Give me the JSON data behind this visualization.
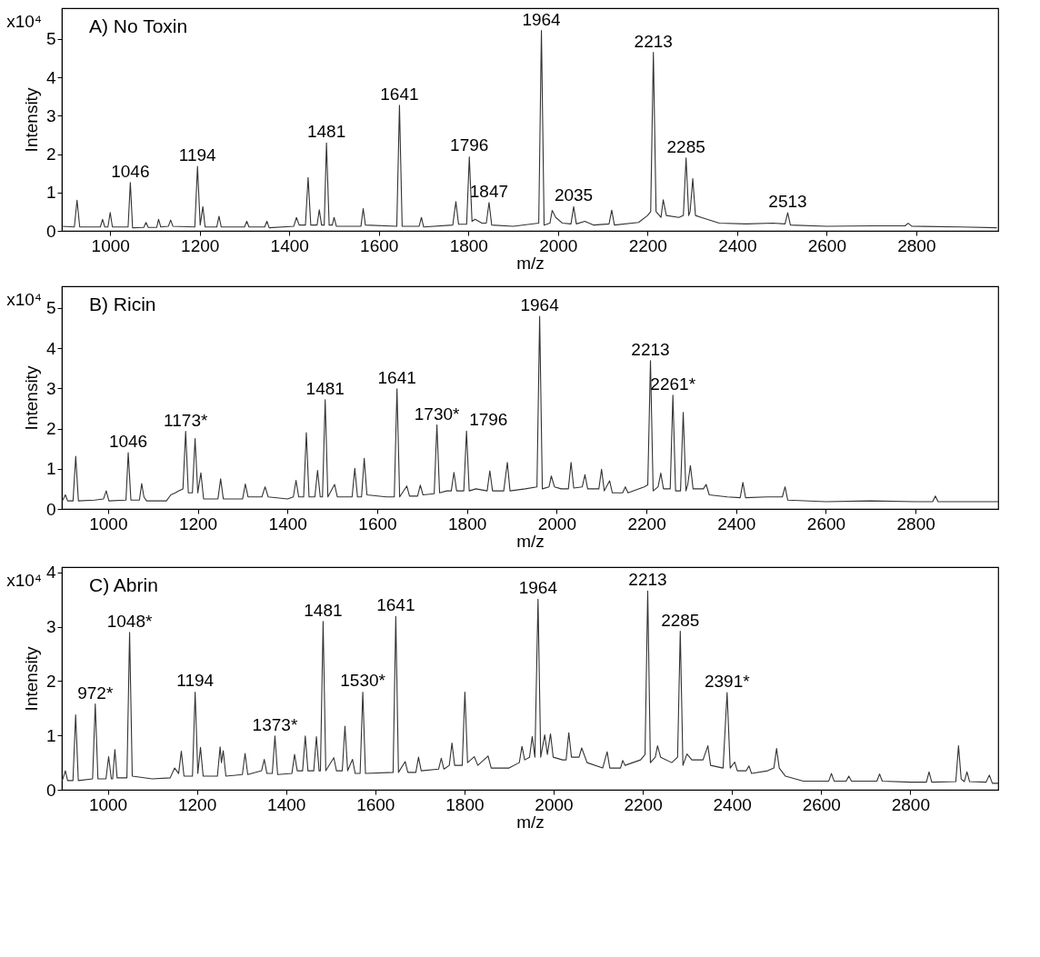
{
  "chart_data": [
    {
      "type": "line",
      "title": "A) No Toxin",
      "xlabel": "m/z",
      "ylabel": "Intensity",
      "xlim": [
        892,
        2983
      ],
      "ylim": [
        0,
        5.8
      ],
      "xticks": [
        1000,
        1200,
        1400,
        1600,
        1800,
        2000,
        2200,
        2400,
        2600,
        2800
      ],
      "yticks": [
        0,
        1,
        2,
        3,
        4,
        5
      ],
      "grid": false,
      "series": [
        {
          "color": "#333333",
          "x": [
            893,
            920,
            926,
            932,
            978,
            983,
            988,
            995,
            1000,
            1005,
            1040,
            1045,
            1050,
            1075,
            1080,
            1085,
            1104,
            1108,
            1113,
            1130,
            1135,
            1140,
            1189,
            1195,
            1201,
            1207,
            1212,
            1238,
            1243,
            1248,
            1300,
            1305,
            1310,
            1345,
            1350,
            1355,
            1410,
            1416,
            1422,
            1436,
            1442,
            1448,
            1462,
            1467,
            1472,
            1478,
            1483,
            1489,
            1496,
            1500,
            1505,
            1560,
            1565,
            1570,
            1640,
            1646,
            1652,
            1690,
            1695,
            1700,
            1765,
            1772,
            1778,
            1796,
            1802,
            1808,
            1815,
            1830,
            1840,
            1846,
            1852,
            1900,
            1957,
            1963,
            1969,
            1982,
            1987,
            1995,
            2010,
            2029,
            2035,
            2041,
            2060,
            2080,
            2114,
            2120,
            2126,
            2180,
            2200,
            2207,
            2213,
            2219,
            2230,
            2235,
            2242,
            2270,
            2280,
            2286,
            2292,
            2295,
            2301,
            2307,
            2320,
            2360,
            2420,
            2480,
            2507,
            2513,
            2519,
            2600,
            2700,
            2775,
            2782,
            2790,
            2900,
            2980
          ],
          "values": [
            0.12,
            0.1,
            0.8,
            0.1,
            0.1,
            0.3,
            0.1,
            0.1,
            0.48,
            0.1,
            0.1,
            1.26,
            0.08,
            0.09,
            0.22,
            0.09,
            0.09,
            0.3,
            0.1,
            0.12,
            0.28,
            0.12,
            0.1,
            1.68,
            0.15,
            0.63,
            0.1,
            0.1,
            0.38,
            0.1,
            0.1,
            0.25,
            0.1,
            0.1,
            0.25,
            0.08,
            0.12,
            0.35,
            0.15,
            0.15,
            1.39,
            0.15,
            0.15,
            0.55,
            0.15,
            0.15,
            2.29,
            0.15,
            0.15,
            0.35,
            0.12,
            0.12,
            0.58,
            0.15,
            0.12,
            3.27,
            0.12,
            0.12,
            0.35,
            0.1,
            0.15,
            0.76,
            0.17,
            0.17,
            1.93,
            0.25,
            0.3,
            0.2,
            0.2,
            0.74,
            0.15,
            0.12,
            0.2,
            5.22,
            0.15,
            0.2,
            0.53,
            0.35,
            0.2,
            0.18,
            0.63,
            0.18,
            0.25,
            0.15,
            0.18,
            0.54,
            0.15,
            0.22,
            0.4,
            0.5,
            4.65,
            0.5,
            0.35,
            0.81,
            0.4,
            0.35,
            0.4,
            1.9,
            0.4,
            0.5,
            1.36,
            0.4,
            0.35,
            0.2,
            0.18,
            0.2,
            0.18,
            0.47,
            0.15,
            0.12,
            0.13,
            0.13,
            0.2,
            0.12,
            0.1,
            0.08
          ]
        }
      ],
      "annotations": [
        "x10⁴",
        {
          "text": "1046",
          "x": 1045,
          "y": 1.26
        },
        {
          "text": "1194",
          "x": 1195,
          "y": 1.68
        },
        {
          "text": "1481",
          "x": 1483,
          "y": 2.29
        },
        {
          "text": "1641",
          "x": 1646,
          "y": 3.27
        },
        {
          "text": "1796",
          "x": 1802,
          "y": 1.93
        },
        {
          "text": "1847",
          "x": 1846,
          "y": 0.74
        },
        {
          "text": "1964",
          "x": 1963,
          "y": 5.22
        },
        {
          "text": "2035",
          "x": 2035,
          "y": 0.63
        },
        {
          "text": "2213",
          "x": 2213,
          "y": 4.65
        },
        {
          "text": "2285",
          "x": 2286,
          "y": 1.9
        },
        {
          "text": "2513",
          "x": 2513,
          "y": 0.47
        }
      ]
    },
    {
      "type": "line",
      "title": "B) Ricin",
      "xlabel": "m/z",
      "ylabel": "Intensity",
      "xlim": [
        897,
        2984
      ],
      "ylim": [
        0,
        5.54
      ],
      "xticks": [
        1000,
        1200,
        1400,
        1600,
        1800,
        2000,
        2200,
        2400,
        2600,
        2800
      ],
      "yticks": [
        0,
        1,
        2,
        3,
        4,
        5
      ],
      "grid": false,
      "series": [
        {
          "color": "#333333",
          "x": [
            898,
            905,
            910,
            922,
            928,
            934,
            970,
            990,
            996,
            1002,
            1040,
            1045,
            1051,
            1070,
            1075,
            1080,
            1086,
            1130,
            1140,
            1150,
            1158,
            1167,
            1173,
            1179,
            1188,
            1194,
            1200,
            1207,
            1213,
            1245,
            1251,
            1257,
            1300,
            1306,
            1312,
            1343,
            1350,
            1357,
            1400,
            1413,
            1419,
            1425,
            1436,
            1442,
            1448,
            1461,
            1467,
            1473,
            1478,
            1484,
            1490,
            1505,
            1511,
            1544,
            1550,
            1556,
            1565,
            1571,
            1577,
            1620,
            1638,
            1644,
            1650,
            1666,
            1672,
            1690,
            1696,
            1702,
            1727,
            1733,
            1739,
            1755,
            1765,
            1771,
            1777,
            1793,
            1799,
            1805,
            1820,
            1845,
            1851,
            1857,
            1882,
            1890,
            1896,
            1930,
            1956,
            1962,
            1968,
            1983,
            1988,
            1995,
            2010,
            2026,
            2032,
            2038,
            2057,
            2063,
            2069,
            2094,
            2100,
            2106,
            2118,
            2124,
            2147,
            2153,
            2159,
            2195,
            2203,
            2209,
            2215,
            2226,
            2232,
            2238,
            2253,
            2259,
            2265,
            2276,
            2282,
            2288,
            2292,
            2298,
            2304,
            2327,
            2333,
            2340,
            2380,
            2409,
            2415,
            2421,
            2470,
            2503,
            2509,
            2515,
            2600,
            2700,
            2800,
            2838,
            2844,
            2850,
            2950,
            2984
          ],
          "values": [
            0.2,
            0.35,
            0.2,
            0.2,
            1.31,
            0.2,
            0.22,
            0.25,
            0.45,
            0.2,
            0.22,
            1.4,
            0.22,
            0.22,
            0.63,
            0.3,
            0.2,
            0.2,
            0.35,
            0.4,
            0.45,
            0.5,
            1.93,
            0.4,
            0.4,
            1.75,
            0.4,
            0.9,
            0.25,
            0.25,
            0.75,
            0.25,
            0.25,
            0.62,
            0.3,
            0.3,
            0.55,
            0.3,
            0.25,
            0.3,
            0.71,
            0.3,
            0.3,
            1.9,
            0.3,
            0.3,
            0.96,
            0.3,
            0.3,
            2.72,
            0.3,
            0.61,
            0.3,
            0.3,
            1.01,
            0.3,
            0.3,
            1.26,
            0.35,
            0.3,
            0.3,
            2.99,
            0.3,
            0.57,
            0.32,
            0.32,
            0.59,
            0.35,
            0.38,
            2.09,
            0.4,
            0.45,
            0.45,
            0.91,
            0.45,
            0.45,
            1.94,
            0.45,
            0.5,
            0.45,
            0.95,
            0.45,
            0.45,
            1.16,
            0.45,
            0.5,
            0.55,
            4.79,
            0.5,
            0.55,
            0.82,
            0.55,
            0.5,
            0.5,
            1.16,
            0.52,
            0.55,
            0.85,
            0.5,
            0.5,
            0.99,
            0.45,
            0.7,
            0.4,
            0.4,
            0.55,
            0.4,
            0.55,
            0.6,
            3.69,
            0.45,
            0.55,
            0.89,
            0.5,
            0.5,
            2.83,
            0.45,
            0.45,
            2.4,
            0.45,
            0.6,
            1.08,
            0.5,
            0.5,
            0.61,
            0.35,
            0.3,
            0.28,
            0.66,
            0.28,
            0.3,
            0.3,
            0.55,
            0.22,
            0.18,
            0.2,
            0.18,
            0.18,
            0.32,
            0.18,
            0.18,
            0.18
          ]
        }
      ],
      "annotations": [
        "x10⁴",
        {
          "text": "1046",
          "x": 1045,
          "y": 1.4
        },
        {
          "text": "1173*",
          "x": 1173,
          "y": 1.93
        },
        {
          "text": "1481",
          "x": 1484,
          "y": 2.72
        },
        {
          "text": "1641",
          "x": 1644,
          "y": 2.99
        },
        {
          "text": "1730*",
          "x": 1733,
          "y": 2.09
        },
        {
          "text": "1796",
          "x": 1799,
          "y": 1.94
        },
        {
          "text": "1964",
          "x": 1962,
          "y": 4.79
        },
        {
          "text": "2213",
          "x": 2209,
          "y": 3.69
        },
        {
          "text": "2261*",
          "x": 2259,
          "y": 2.83
        }
      ]
    },
    {
      "type": "line",
      "title": "C) Abrin",
      "xlabel": "m/z",
      "ylabel": "Intensity",
      "xlim": [
        897,
        2997
      ],
      "ylim": [
        0,
        4.1
      ],
      "xticks": [
        1000,
        1200,
        1400,
        1600,
        1800,
        2000,
        2200,
        2400,
        2600,
        2800
      ],
      "yticks": [
        0,
        1,
        2,
        3,
        4
      ],
      "grid": false,
      "series": [
        {
          "color": "#333333",
          "x": [
            898,
            905,
            910,
            922,
            928,
            934,
            966,
            972,
            978,
            996,
            1002,
            1008,
            1011,
            1016,
            1021,
            1043,
            1049,
            1055,
            1100,
            1140,
            1150,
            1159,
            1165,
            1171,
            1190,
            1196,
            1202,
            1208,
            1214,
            1246,
            1252,
            1255,
            1259,
            1265,
            1302,
            1308,
            1314,
            1345,
            1351,
            1357,
            1369,
            1375,
            1381,
            1413,
            1419,
            1425,
            1437,
            1443,
            1449,
            1462,
            1468,
            1474,
            1477,
            1483,
            1489,
            1507,
            1513,
            1526,
            1532,
            1538,
            1549,
            1555,
            1566,
            1572,
            1578,
            1640,
            1646,
            1652,
            1667,
            1673,
            1691,
            1697,
            1703,
            1742,
            1748,
            1754,
            1766,
            1772,
            1778,
            1795,
            1801,
            1807,
            1822,
            1830,
            1853,
            1860,
            1900,
            1923,
            1929,
            1935,
            1946,
            1952,
            1958,
            1965,
            1971,
            1980,
            1986,
            1993,
            1999,
            2020,
            2028,
            2034,
            2040,
            2057,
            2063,
            2075,
            2110,
            2120,
            2126,
            2150,
            2155,
            2160,
            2195,
            2205,
            2211,
            2217,
            2228,
            2233,
            2240,
            2265,
            2278,
            2284,
            2290,
            2299,
            2310,
            2335,
            2346,
            2352,
            2380,
            2389,
            2396,
            2406,
            2412,
            2432,
            2438,
            2444,
            2480,
            2494,
            2500,
            2506,
            2520,
            2560,
            2617,
            2623,
            2629,
            2656,
            2662,
            2668,
            2725,
            2731,
            2737,
            2800,
            2836,
            2842,
            2848,
            2902,
            2908,
            2914,
            2921,
            2927,
            2933,
            2970,
            2977,
            2984,
            2997
          ],
          "values": [
            0.17,
            0.35,
            0.17,
            0.17,
            1.38,
            0.17,
            0.2,
            1.58,
            0.2,
            0.2,
            0.61,
            0.2,
            0.2,
            0.74,
            0.22,
            0.22,
            2.9,
            0.25,
            0.2,
            0.22,
            0.4,
            0.3,
            0.71,
            0.25,
            0.25,
            1.8,
            0.3,
            0.78,
            0.25,
            0.25,
            0.79,
            0.5,
            0.72,
            0.25,
            0.28,
            0.67,
            0.28,
            0.35,
            0.56,
            0.3,
            0.3,
            0.99,
            0.28,
            0.3,
            0.65,
            0.35,
            0.35,
            0.99,
            0.35,
            0.35,
            0.98,
            0.35,
            0.35,
            3.1,
            0.35,
            0.59,
            0.35,
            0.35,
            1.17,
            0.35,
            0.56,
            0.3,
            0.3,
            1.8,
            0.3,
            0.32,
            3.19,
            0.32,
            0.52,
            0.32,
            0.32,
            0.6,
            0.35,
            0.38,
            0.58,
            0.38,
            0.45,
            0.86,
            0.45,
            0.45,
            1.8,
            0.5,
            0.61,
            0.45,
            0.62,
            0.4,
            0.4,
            0.5,
            0.8,
            0.55,
            0.6,
            0.98,
            0.6,
            3.51,
            0.6,
            1.01,
            0.65,
            1.03,
            0.6,
            0.55,
            0.55,
            1.05,
            0.6,
            0.6,
            0.77,
            0.5,
            0.4,
            0.7,
            0.4,
            0.4,
            0.54,
            0.45,
            0.55,
            0.65,
            3.66,
            0.5,
            0.6,
            0.81,
            0.6,
            0.5,
            0.6,
            2.92,
            0.45,
            0.66,
            0.55,
            0.55,
            0.81,
            0.45,
            0.4,
            1.79,
            0.4,
            0.51,
            0.35,
            0.35,
            0.44,
            0.3,
            0.35,
            0.4,
            0.76,
            0.4,
            0.25,
            0.16,
            0.16,
            0.3,
            0.16,
            0.16,
            0.25,
            0.16,
            0.16,
            0.29,
            0.16,
            0.14,
            0.14,
            0.33,
            0.14,
            0.15,
            0.81,
            0.2,
            0.15,
            0.33,
            0.15,
            0.14,
            0.27,
            0.12,
            0.12
          ]
        }
      ],
      "annotations": [
        "x10⁴",
        {
          "text": "972*",
          "x": 972,
          "y": 1.58
        },
        {
          "text": "1048*",
          "x": 1049,
          "y": 2.9
        },
        {
          "text": "1194",
          "x": 1196,
          "y": 1.8
        },
        {
          "text": "1373*",
          "x": 1375,
          "y": 0.99
        },
        {
          "text": "1481",
          "x": 1483,
          "y": 3.1
        },
        {
          "text": "1530*",
          "x": 1572,
          "y": 1.8
        },
        {
          "text": "1641",
          "x": 1646,
          "y": 3.19
        },
        {
          "text": "1964",
          "x": 1965,
          "y": 3.51
        },
        {
          "text": "2213",
          "x": 2211,
          "y": 3.66
        },
        {
          "text": "2285",
          "x": 2284,
          "y": 2.92
        },
        {
          "text": "2391*",
          "x": 2389,
          "y": 1.79
        }
      ]
    }
  ]
}
